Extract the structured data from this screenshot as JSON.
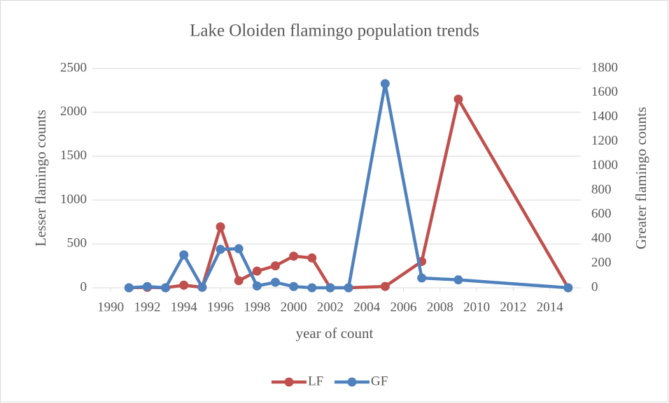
{
  "chart_data": {
    "type": "line",
    "title": "Lake Oloiden flamingo population trends",
    "xlabel": "year of count",
    "ylabel": "Lesser flamingo counts",
    "y2label": "Greater flamingo counts",
    "x": [
      1991,
      1992,
      1993,
      1994,
      1995,
      1996,
      1997,
      1998,
      1999,
      2000,
      2001,
      2002,
      2003,
      2005,
      2007,
      2009,
      2015
    ],
    "series": [
      {
        "name": "LF",
        "color": "#c0504d",
        "axis": "y",
        "values": [
          0,
          5,
          0,
          30,
          5,
          695,
          80,
          190,
          250,
          360,
          340,
          0,
          0,
          15,
          300,
          2150,
          0
        ]
      },
      {
        "name": "GF",
        "color": "#4f81bd",
        "axis": "y2",
        "values": [
          0,
          10,
          0,
          270,
          5,
          315,
          320,
          15,
          45,
          10,
          0,
          0,
          0,
          1675,
          80,
          65,
          0
        ]
      }
    ],
    "xlim": [
      1989,
      2016
    ],
    "xticks": [
      1990,
      1992,
      1994,
      1996,
      1998,
      2000,
      2002,
      2004,
      2006,
      2008,
      2010,
      2012,
      2014
    ],
    "ylim": [
      0,
      2500
    ],
    "yticks": [
      0,
      500,
      1000,
      1500,
      2000,
      2500
    ],
    "y2lim": [
      0,
      1800
    ],
    "y2ticks": [
      0,
      200,
      400,
      600,
      800,
      1000,
      1200,
      1400,
      1600,
      1800
    ],
    "grid": true,
    "legend": "bottom"
  }
}
